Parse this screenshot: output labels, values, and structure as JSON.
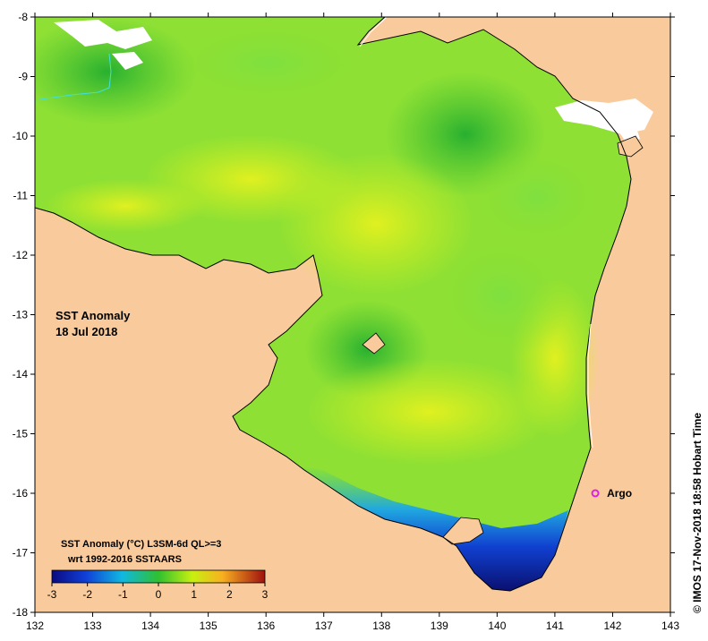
{
  "map": {
    "title_line1": "SST Anomaly",
    "title_line2": "18 Jul 2018",
    "legend_line1": "SST Anomaly (°C) L3SM-6d QL>=3",
    "legend_line2": "wrt 1992-2016 SSTAARS",
    "credit": "© IMOS 17-Nov-2018 18:58 Hobart Time",
    "marker_label": "Argo",
    "colors": {
      "land": "#F9CB9C",
      "accent_marker": "#E020E0"
    }
  },
  "chart_data": {
    "type": "heatmap",
    "x_ticks": [
      132,
      133,
      134,
      135,
      136,
      137,
      138,
      139,
      140,
      141,
      142,
      143
    ],
    "y_ticks": [
      -8,
      -9,
      -10,
      -11,
      -12,
      -13,
      -14,
      -15,
      -16,
      -17,
      -18
    ],
    "xlim": [
      132,
      143
    ],
    "ylim": [
      -18,
      -8
    ],
    "colorbar": {
      "ticks": [
        -3,
        -2,
        -1,
        0,
        1,
        2,
        3
      ],
      "range": [
        -3,
        3
      ]
    },
    "marker": {
      "lon": 141.7,
      "lat": -16.0,
      "label": "Argo"
    }
  }
}
